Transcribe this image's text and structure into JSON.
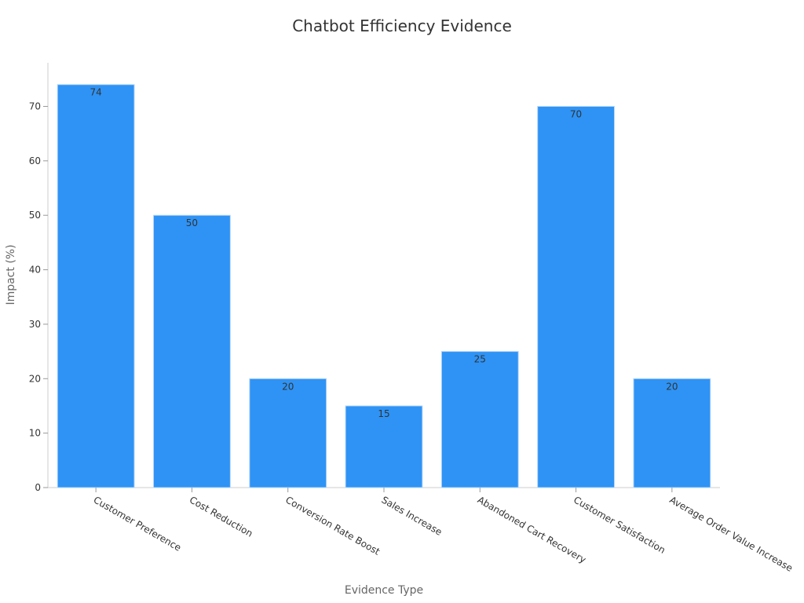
{
  "chart_data": {
    "type": "bar",
    "title": "Chatbot Efficiency Evidence",
    "xlabel": "Evidence Type",
    "ylabel": "Impact (%)",
    "categories": [
      "Customer Preference",
      "Cost Reduction",
      "Conversion Rate Boost",
      "Sales Increase",
      "Abandoned Cart Recovery",
      "Customer Satisfaction",
      "Average Order Value Increase"
    ],
    "values": [
      74,
      50,
      20,
      15,
      25,
      70,
      20
    ],
    "ylim": [
      0,
      78
    ],
    "yticks": [
      0,
      10,
      20,
      30,
      40,
      50,
      60,
      70
    ],
    "grid": false,
    "legend": "none",
    "colors": {
      "bar": "#2e93f5",
      "bar_edge": "#b7d7f7"
    }
  }
}
